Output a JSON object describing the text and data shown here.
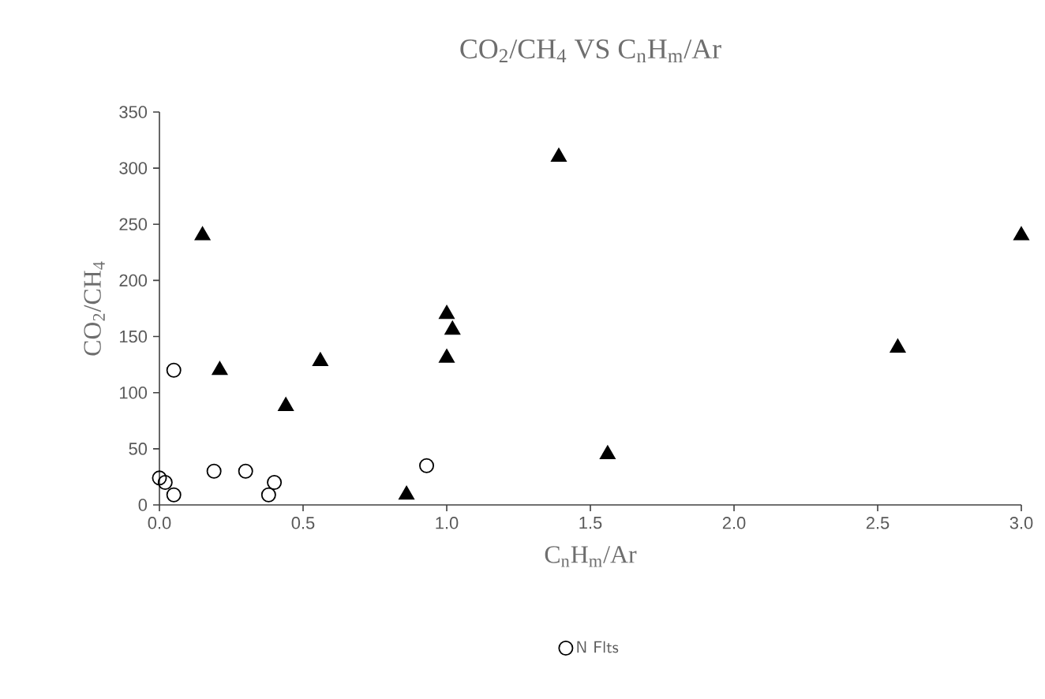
{
  "chart_data": {
    "type": "scatter",
    "title": "CO$_{2}$/CH$_{4}$ VS C$_{n}$H$_{m}$/Ar",
    "xlabel": "C$_{n}$H$_{m}$/Ar",
    "ylabel": "CO$_{2}$/CH$_{4}$",
    "xlim": [
      0,
      3
    ],
    "ylim": [
      0,
      350
    ],
    "xticks": [
      {
        "value": 0,
        "label": "0.0"
      },
      {
        "value": 0.5,
        "label": "0.5"
      },
      {
        "value": 1,
        "label": "1.0"
      },
      {
        "value": 1.5,
        "label": "1.5"
      },
      {
        "value": 2,
        "label": "2.0"
      },
      {
        "value": 2.5,
        "label": "2.5"
      },
      {
        "value": 3,
        "label": "3.0"
      }
    ],
    "yticks": [
      0,
      50,
      100,
      150,
      200,
      250,
      300,
      350
    ],
    "grid": false,
    "legend": "bottom",
    "series": [
      {
        "name": "N Flts",
        "color": "#000000",
        "marker": "circle",
        "x": [
          0.0,
          0.02,
          0.05,
          0.05,
          0.19,
          0.3,
          0.38,
          0.4,
          0.93
        ],
        "values": [
          24,
          20,
          9,
          120,
          30,
          30,
          9,
          20,
          35
        ]
      },
      {
        "color": "#000000",
        "marker": "triangle",
        "x": [
          0.15,
          0.21,
          0.44,
          0.56,
          0.86,
          1.0,
          1.02,
          1.0,
          1.39,
          1.56,
          2.57,
          3.0
        ],
        "values": [
          240,
          120,
          88,
          128,
          9,
          170,
          156,
          131,
          310,
          45,
          140,
          240
        ]
      }
    ]
  }
}
